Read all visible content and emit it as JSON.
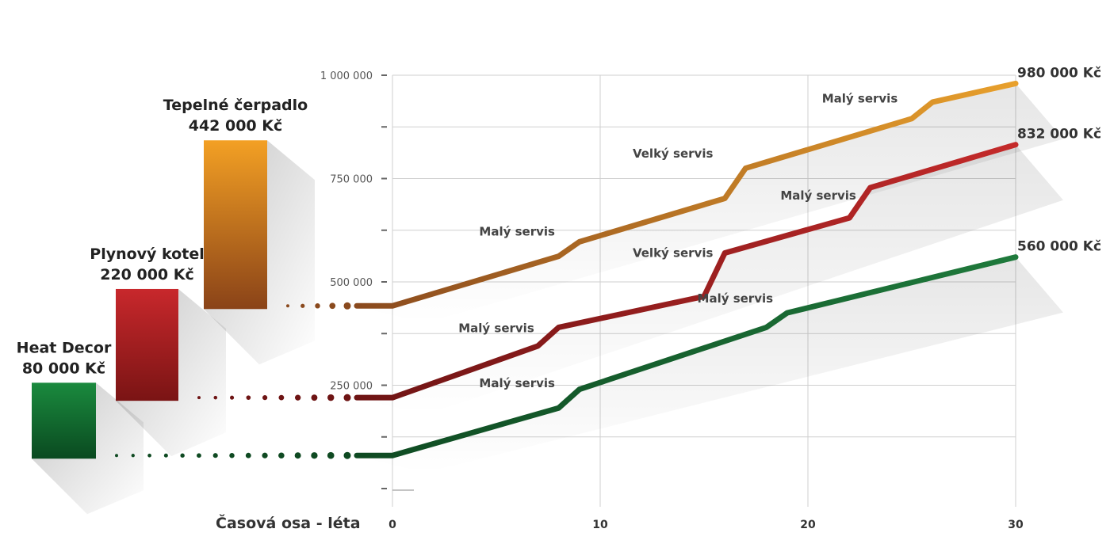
{
  "chart_data": {
    "type": "line",
    "x_axis_title": "Časová osa - léta",
    "x_ticks": [
      0,
      10,
      20,
      30
    ],
    "y_ticks": [
      {
        "value": 250000,
        "label": "250 000"
      },
      {
        "value": 500000,
        "label": "500 000"
      },
      {
        "value": 750000,
        "label": "750 000"
      },
      {
        "value": 1000000,
        "label": "1 000 000"
      }
    ],
    "x_range": [
      0,
      30
    ],
    "y_range": [
      0,
      1000000
    ],
    "grid": true,
    "series": [
      {
        "name": "Tepelné čerpadlo",
        "initial_cost_label": "442 000 Kč",
        "initial_cost": 442000,
        "end_label": "980 000 Kč",
        "color": "#e8a02c",
        "color_start": "#8a4a1e",
        "bar_top": "#f3a024",
        "bar_bottom": "#8a4318",
        "x": [
          0,
          8,
          9,
          16,
          17,
          25,
          26,
          30
        ],
        "y": [
          442000,
          562000,
          597000,
          702000,
          775000,
          895000,
          935000,
          980000
        ],
        "annotations": [
          {
            "text": "Malý servis",
            "x": 6,
            "y": 612000
          },
          {
            "text": "Velký servis",
            "x": 13.5,
            "y": 801000
          },
          {
            "text": "Malý servis",
            "x": 22.5,
            "y": 934000
          }
        ]
      },
      {
        "name": "Plynový kotel",
        "initial_cost_label": "220 000 Kč",
        "initial_cost": 220000,
        "end_label": "832 000 Kč",
        "color": "#c42a2a",
        "color_start": "#6e1414",
        "bar_top": "#c8282c",
        "bar_bottom": "#7a1414",
        "x": [
          0,
          7,
          8,
          15,
          16,
          22,
          23,
          30
        ],
        "y": [
          220000,
          345000,
          390000,
          465000,
          570000,
          655000,
          728000,
          832000
        ],
        "annotations": [
          {
            "text": "Malý servis",
            "x": 5,
            "y": 378000
          },
          {
            "text": "Velký servis",
            "x": 13.5,
            "y": 560000
          },
          {
            "text": "Malý servis",
            "x": 20.5,
            "y": 699000
          }
        ]
      },
      {
        "name": "Heat Decor",
        "initial_cost_label": "80 000 Kč",
        "initial_cost": 80000,
        "end_label": "560 000 Kč",
        "color": "#1f7a3c",
        "color_start": "#0f4a22",
        "bar_top": "#1a8a3e",
        "bar_bottom": "#0a4a20",
        "x": [
          0,
          8,
          9,
          18,
          19,
          30
        ],
        "y": [
          80000,
          195000,
          240000,
          390000,
          425000,
          560000
        ],
        "annotations": [
          {
            "text": "Malý servis",
            "x": 6,
            "y": 245000
          },
          {
            "text": "Malý servis",
            "x": 16.5,
            "y": 450000
          }
        ]
      }
    ]
  }
}
